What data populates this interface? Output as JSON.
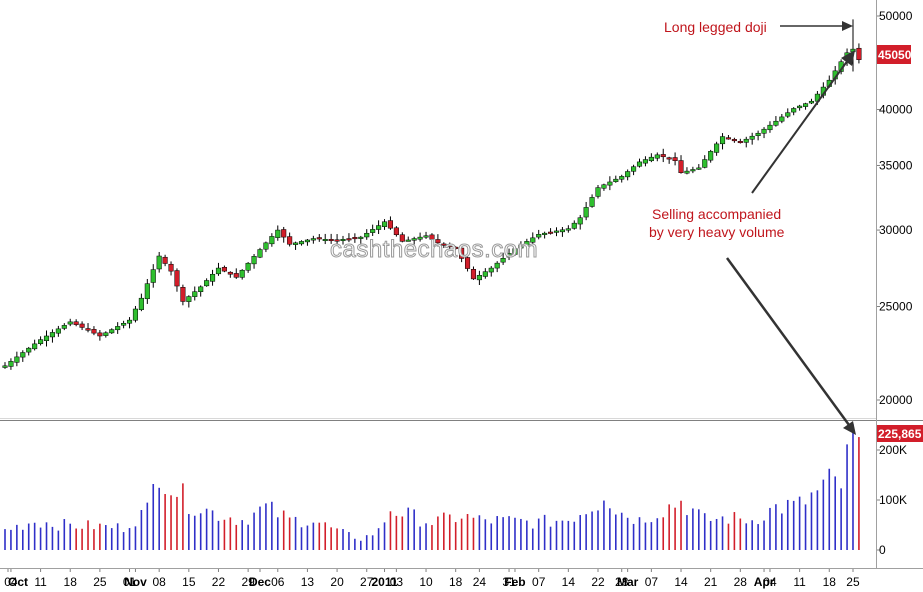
{
  "chart_data": {
    "type": "candlestick",
    "watermark": "cashthechaos.com",
    "colors": {
      "up": "#2fbf2f",
      "down": "#d21e2a",
      "wick": "#000000",
      "vol_up": "#2f2fc8",
      "vol_down": "#d21e2a",
      "tag": "#d21e2a",
      "annotation": "#c0151c"
    },
    "price_axis": {
      "ticks": [
        {
          "value": 50000,
          "label": "50000"
        },
        {
          "value": 45000,
          "label": ""
        },
        {
          "value": 40000,
          "label": "40000"
        },
        {
          "value": 35000,
          "label": "35000"
        },
        {
          "value": 30000,
          "label": "30000"
        },
        {
          "value": 25000,
          "label": "25000"
        },
        {
          "value": 20000,
          "label": "20000"
        }
      ],
      "scale": "log",
      "range": [
        16800,
        51000
      ]
    },
    "volume_axis": {
      "ticks": [
        {
          "value": 200000,
          "label": "200K"
        },
        {
          "value": 100000,
          "label": "100K"
        },
        {
          "value": 0,
          "label": "0"
        }
      ],
      "range": [
        0,
        240000
      ]
    },
    "last_price_tag": "45050",
    "last_volume_tag": "225,865",
    "x_axis": {
      "labels": [
        {
          "label": "Oct",
          "index": 0,
          "major": true
        },
        {
          "label": "04",
          "index": 1,
          "major": false
        },
        {
          "label": "11",
          "index": 6,
          "major": false
        },
        {
          "label": "18",
          "index": 11,
          "major": false
        },
        {
          "label": "25",
          "index": 16,
          "major": false
        },
        {
          "label": "01",
          "index": 21,
          "major": false
        },
        {
          "label": "Nov",
          "index": 22,
          "major": true
        },
        {
          "label": "08",
          "index": 26,
          "major": false
        },
        {
          "label": "15",
          "index": 31,
          "major": false
        },
        {
          "label": "22",
          "index": 36,
          "major": false
        },
        {
          "label": "29",
          "index": 41,
          "major": false
        },
        {
          "label": "Dec",
          "index": 43,
          "major": true
        },
        {
          "label": "06",
          "index": 46,
          "major": false
        },
        {
          "label": "13",
          "index": 51,
          "major": false
        },
        {
          "label": "20",
          "index": 56,
          "major": false
        },
        {
          "label": "27",
          "index": 61,
          "major": false
        },
        {
          "label": "2011",
          "index": 64,
          "major": true
        },
        {
          "label": "03",
          "index": 66,
          "major": false
        },
        {
          "label": "10",
          "index": 71,
          "major": false
        },
        {
          "label": "18",
          "index": 76,
          "major": false
        },
        {
          "label": "24",
          "index": 80,
          "major": false
        },
        {
          "label": "31",
          "index": 85,
          "major": false
        },
        {
          "label": "Feb",
          "index": 86,
          "major": true
        },
        {
          "label": "07",
          "index": 90,
          "major": false
        },
        {
          "label": "14",
          "index": 95,
          "major": false
        },
        {
          "label": "22",
          "index": 100,
          "major": false
        },
        {
          "label": "28",
          "index": 104,
          "major": false
        },
        {
          "label": "Mar",
          "index": 105,
          "major": true
        },
        {
          "label": "07",
          "index": 109,
          "major": false
        },
        {
          "label": "14",
          "index": 114,
          "major": false
        },
        {
          "label": "21",
          "index": 119,
          "major": false
        },
        {
          "label": "28",
          "index": 124,
          "major": false
        },
        {
          "label": "Apr",
          "index": 128,
          "major": true
        },
        {
          "label": "04",
          "index": 129,
          "major": false
        },
        {
          "label": "11",
          "index": 134,
          "major": false
        },
        {
          "label": "18",
          "index": 139,
          "major": false
        },
        {
          "label": "25",
          "index": 143,
          "major": false
        }
      ]
    },
    "annotations": [
      {
        "id": "doji",
        "text": "Long legged doji"
      },
      {
        "id": "selling",
        "lines": [
          "Selling accompanied",
          "by very heavy volume"
        ]
      }
    ],
    "price_keypoints": [
      [
        0,
        21700
      ],
      [
        6,
        23100
      ],
      [
        11,
        24100
      ],
      [
        16,
        23300
      ],
      [
        21,
        24200
      ],
      [
        23,
        25500
      ],
      [
        26,
        28200
      ],
      [
        28,
        27200
      ],
      [
        30,
        25300
      ],
      [
        33,
        26200
      ],
      [
        36,
        27400
      ],
      [
        39,
        26800
      ],
      [
        44,
        29100
      ],
      [
        46,
        30000
      ],
      [
        48,
        29000
      ],
      [
        52,
        29400
      ],
      [
        56,
        29300
      ],
      [
        60,
        29500
      ],
      [
        64,
        30600
      ],
      [
        67,
        29200
      ],
      [
        71,
        29600
      ],
      [
        73,
        29100
      ],
      [
        76,
        28700
      ],
      [
        79,
        26700
      ],
      [
        82,
        27400
      ],
      [
        86,
        28700
      ],
      [
        90,
        29700
      ],
      [
        95,
        30100
      ],
      [
        97,
        30900
      ],
      [
        100,
        33200
      ],
      [
        104,
        34100
      ],
      [
        107,
        35300
      ],
      [
        110,
        35900
      ],
      [
        113,
        35400
      ],
      [
        114,
        34400
      ],
      [
        117,
        34800
      ],
      [
        119,
        36200
      ],
      [
        121,
        37500
      ],
      [
        124,
        37000
      ],
      [
        127,
        37800
      ],
      [
        130,
        38900
      ],
      [
        133,
        40100
      ],
      [
        136,
        40800
      ],
      [
        139,
        42900
      ],
      [
        142,
        45800
      ],
      [
        143,
        46200
      ],
      [
        144,
        45050
      ]
    ],
    "volume_keypoints": [
      [
        0,
        40000
      ],
      [
        5,
        58000
      ],
      [
        10,
        50000
      ],
      [
        15,
        48000
      ],
      [
        20,
        45000
      ],
      [
        24,
        80000
      ],
      [
        26,
        165000
      ],
      [
        28,
        130000
      ],
      [
        31,
        95000
      ],
      [
        35,
        75000
      ],
      [
        40,
        60000
      ],
      [
        44,
        85000
      ],
      [
        48,
        60000
      ],
      [
        52,
        60000
      ],
      [
        56,
        38000
      ],
      [
        60,
        22000
      ],
      [
        63,
        38000
      ],
      [
        65,
        82000
      ],
      [
        68,
        70000
      ],
      [
        72,
        55000
      ],
      [
        77,
        68000
      ],
      [
        80,
        60000
      ],
      [
        85,
        58000
      ],
      [
        90,
        55000
      ],
      [
        95,
        62000
      ],
      [
        100,
        95000
      ],
      [
        101,
        120000
      ],
      [
        103,
        80000
      ],
      [
        107,
        60000
      ],
      [
        111,
        82000
      ],
      [
        114,
        98000
      ],
      [
        118,
        60000
      ],
      [
        122,
        64000
      ],
      [
        126,
        60000
      ],
      [
        130,
        85000
      ],
      [
        134,
        90000
      ],
      [
        137,
        115000
      ],
      [
        139,
        135000
      ],
      [
        141,
        130000
      ],
      [
        143,
        225865
      ]
    ]
  }
}
